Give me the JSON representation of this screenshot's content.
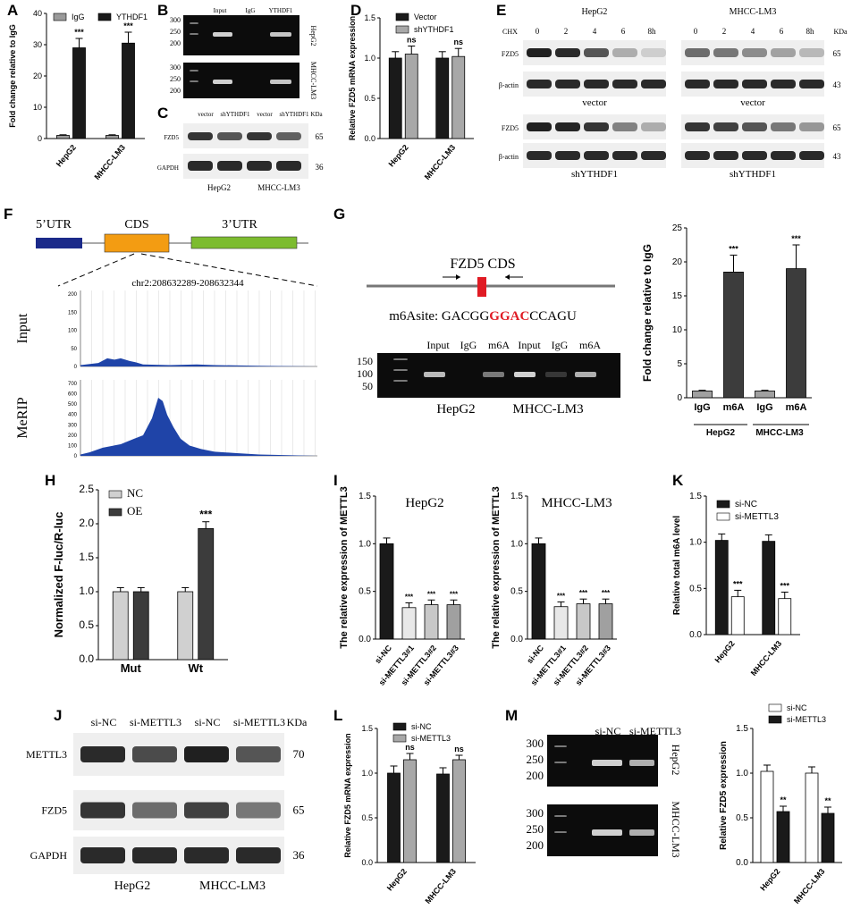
{
  "panels": {
    "A": {
      "label": "A",
      "ylabel": "Fold change relative to IgG",
      "legend": [
        "IgG",
        "YTHDF1"
      ],
      "chart_data": {
        "type": "bar",
        "categories": [
          "HepG2",
          "MHCC-LM3"
        ],
        "series": [
          {
            "name": "IgG",
            "values": [
              1,
              1
            ]
          },
          {
            "name": "YTHDF1",
            "values": [
              29,
              30.5
            ]
          }
        ],
        "errors": [
          [
            0.2,
            0.2
          ],
          [
            3,
            3.5
          ]
        ],
        "ylim": [
          0,
          40
        ],
        "yticks": [
          "0",
          "10",
          "20",
          "30",
          "40"
        ],
        "annotations": [
          "***",
          "***"
        ]
      }
    },
    "B": {
      "label": "B",
      "cols": [
        "Input",
        "IgG",
        "YTHDF1"
      ],
      "rows": [
        "HepG2",
        "MHCC-LM3"
      ],
      "ladder": [
        "300",
        "250",
        "200"
      ]
    },
    "C": {
      "label": "C",
      "cols": [
        "vector",
        "shYTHDF1",
        "vector",
        "shYTHDF1"
      ],
      "unit": "KDa",
      "rows": [
        {
          "name": "FZD5",
          "kda": "65"
        },
        {
          "name": "GAPDH",
          "kda": "36"
        }
      ],
      "groups": [
        "HepG2",
        "MHCC-LM3"
      ]
    },
    "D": {
      "label": "D",
      "ylabel": "Relative FZD5 mRNA expression",
      "legend": [
        "Vector",
        "shYTHDF1"
      ],
      "chart_data": {
        "type": "bar",
        "categories": [
          "HepG2",
          "MHCC-LM3"
        ],
        "series": [
          {
            "name": "Vector",
            "values": [
              1.0,
              1.0
            ]
          },
          {
            "name": "shYTHDF1",
            "values": [
              1.05,
              1.02
            ]
          }
        ],
        "errors": [
          [
            0.08,
            0.08
          ],
          [
            0.1,
            0.1
          ]
        ],
        "ylim": [
          0,
          1.5
        ],
        "yticks": [
          "0.0",
          "0.5",
          "1.0",
          "1.5"
        ],
        "annotations": [
          "ns",
          "ns"
        ]
      }
    },
    "E": {
      "label": "E",
      "chx": "CHX",
      "times": [
        "0",
        "2",
        "4",
        "6",
        "8h"
      ],
      "unit": "KDa",
      "cells": [
        "HepG2",
        "MHCC-LM3"
      ],
      "conds": [
        "vector",
        "shYTHDF1"
      ],
      "rows": [
        {
          "name": "FZD5",
          "kda": "65"
        },
        {
          "name": "β-actin",
          "kda": "43"
        }
      ]
    },
    "F": {
      "label": "F",
      "utr5": "5’UTR",
      "cds": "CDS",
      "utr3": "3’UTR",
      "coords": "chr2:208632289-208632344",
      "tracks": [
        {
          "name": "Input",
          "ticks": [
            "200",
            "150",
            "100",
            "50",
            "0"
          ]
        },
        {
          "name": "MeRIP",
          "ticks": [
            "700",
            "600",
            "500",
            "400",
            "300",
            "200",
            "100",
            "0"
          ]
        }
      ]
    },
    "G": {
      "label": "G",
      "gene": "FZD5 CDS",
      "site_prefix": "m6Asite: GACGG",
      "site_motif": "GGAC",
      "site_suffix": "CCAGU",
      "gel_cols": [
        "Input",
        "IgG",
        "m6A",
        "Input",
        "IgG",
        "m6A"
      ],
      "ladder": [
        "150",
        "100",
        "50"
      ],
      "groups": [
        "HepG2",
        "MHCC-LM3"
      ],
      "ylabel": "Fold change relative to IgG",
      "chart_data": {
        "type": "bar",
        "categories": [
          "IgG",
          "m6A",
          "IgG",
          "m6A"
        ],
        "groups": [
          "HepG2",
          "MHCC-LM3"
        ],
        "values": [
          1,
          18.5,
          1,
          19
        ],
        "errors": [
          0.1,
          2.5,
          0.1,
          3.5
        ],
        "ylim": [
          0,
          25
        ],
        "yticks": [
          "0",
          "5",
          "10",
          "15",
          "20",
          "25"
        ],
        "annotations": [
          "",
          "***",
          "",
          "***"
        ]
      }
    },
    "H": {
      "label": "H",
      "ylabel": "Normalized F-luc/R-luc",
      "legend": [
        "NC",
        "OE"
      ],
      "chart_data": {
        "type": "bar",
        "categories": [
          "Mut",
          "Wt"
        ],
        "series": [
          {
            "name": "NC",
            "values": [
              1.0,
              1.0
            ]
          },
          {
            "name": "OE",
            "values": [
              1.0,
              1.93
            ]
          }
        ],
        "errors": [
          [
            0.06,
            0.06
          ],
          [
            0.06,
            0.1
          ]
        ],
        "ylim": [
          0,
          2.5
        ],
        "yticks": [
          "0.0",
          "0.5",
          "1.0",
          "1.5",
          "2.0",
          "2.5"
        ],
        "annotations": [
          "",
          "***"
        ]
      }
    },
    "I": {
      "label": "I",
      "ylabel": "The relative expression of METTL3",
      "charts": [
        {
          "title": "HepG2"
        },
        {
          "title": "MHCC-LM3"
        }
      ],
      "chart_data": [
        {
          "type": "bar",
          "title": "HepG2",
          "categories": [
            "si-NC",
            "si-METTL3#1",
            "si-METTL3#2",
            "si-METTL3#3"
          ],
          "values": [
            1.0,
            0.33,
            0.36,
            0.36
          ],
          "errors": [
            0.06,
            0.05,
            0.05,
            0.05
          ],
          "ylim": [
            0,
            1.5
          ],
          "yticks": [
            "0.0",
            "0.5",
            "1.0",
            "1.5"
          ],
          "annotations": [
            "",
            "***",
            "***",
            "***"
          ]
        },
        {
          "type": "bar",
          "title": "MHCC-LM3",
          "categories": [
            "si-NC",
            "si-METTL3#1",
            "si-METTL3#2",
            "si-METTL3#3"
          ],
          "values": [
            1.0,
            0.34,
            0.37,
            0.37
          ],
          "errors": [
            0.06,
            0.05,
            0.05,
            0.05
          ],
          "ylim": [
            0,
            1.5
          ],
          "yticks": [
            "0.0",
            "0.5",
            "1.0",
            "1.5"
          ],
          "annotations": [
            "",
            "***",
            "***",
            "***"
          ]
        }
      ]
    },
    "J": {
      "label": "J",
      "cols": [
        "si-NC",
        "si-METTL3",
        "si-NC",
        "si-METTL3"
      ],
      "unit": "KDa",
      "rows": [
        {
          "name": "METTL3",
          "kda": "70"
        },
        {
          "name": "FZD5",
          "kda": "65"
        },
        {
          "name": "GAPDH",
          "kda": "36"
        }
      ],
      "groups": [
        "HepG2",
        "MHCC-LM3"
      ]
    },
    "K": {
      "label": "K",
      "ylabel": "Relative total m6A level",
      "legend": [
        "si-NC",
        "si-METTL3"
      ],
      "chart_data": {
        "type": "bar",
        "categories": [
          "HepG2",
          "MHCC-LM3"
        ],
        "series": [
          {
            "name": "si-NC",
            "values": [
              1.02,
              1.01
            ]
          },
          {
            "name": "si-METTL3",
            "values": [
              0.41,
              0.39
            ]
          }
        ],
        "errors": [
          [
            0.07,
            0.07
          ],
          [
            0.07,
            0.07
          ]
        ],
        "ylim": [
          0,
          1.5
        ],
        "yticks": [
          "0.0",
          "0.5",
          "1.0",
          "1.5"
        ],
        "annotations": [
          "***",
          "***"
        ]
      }
    },
    "L": {
      "label": "L",
      "ylabel": "Relative FZD5 mRNA expression",
      "legend": [
        "si-NC",
        "si-METTL3"
      ],
      "chart_data": {
        "type": "bar",
        "categories": [
          "HepG2",
          "MHCC-LM3"
        ],
        "series": [
          {
            "name": "si-NC",
            "values": [
              1.0,
              0.99
            ]
          },
          {
            "name": "si-METTL3",
            "values": [
              1.15,
              1.15
            ]
          }
        ],
        "errors": [
          [
            0.08,
            0.07
          ],
          [
            0.07,
            0.05
          ]
        ],
        "ylim": [
          0,
          1.5
        ],
        "yticks": [
          "0.0",
          "0.5",
          "1.0",
          "1.5"
        ],
        "annotations": [
          "ns",
          "ns"
        ]
      }
    },
    "M": {
      "label": "M",
      "cols": [
        "si-NC",
        "si-METTL3"
      ],
      "rows": [
        "HepG2",
        "MHCC-LM3"
      ],
      "ladder": [
        "300",
        "250",
        "200"
      ],
      "ylabel": "Relative FZD5 expression",
      "legend": [
        "si-NC",
        "si-METTL3"
      ],
      "chart_data": {
        "type": "bar",
        "categories": [
          "HepG2",
          "MHCC-LM3"
        ],
        "series": [
          {
            "name": "si-NC",
            "values": [
              1.02,
              1.0
            ]
          },
          {
            "name": "si-METTL3",
            "values": [
              0.57,
              0.55
            ]
          }
        ],
        "errors": [
          [
            0.07,
            0.07
          ],
          [
            0.06,
            0.07
          ]
        ],
        "ylim": [
          0,
          1.5
        ],
        "yticks": [
          "0.0",
          "0.5",
          "1.0",
          "1.5"
        ],
        "annotations": [
          "**",
          "**"
        ]
      }
    }
  }
}
